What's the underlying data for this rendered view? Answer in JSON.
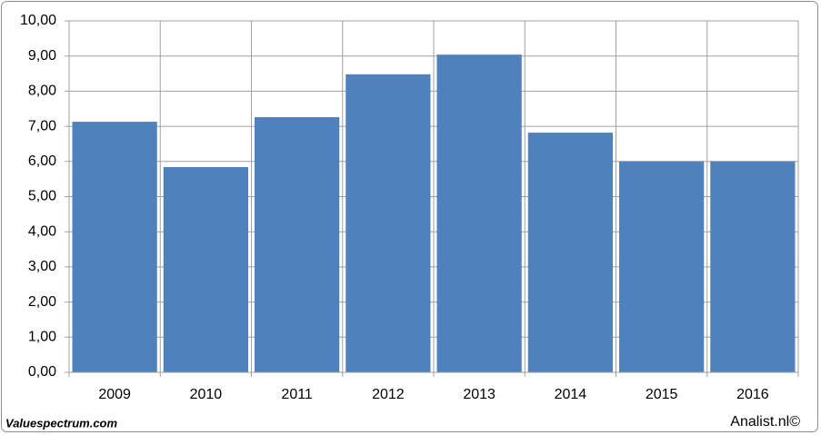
{
  "chart_data": {
    "type": "bar",
    "categories": [
      "2009",
      "2010",
      "2011",
      "2012",
      "2013",
      "2014",
      "2015",
      "2016"
    ],
    "values": [
      7.13,
      5.84,
      7.26,
      8.48,
      9.04,
      6.82,
      6.0,
      6.0
    ],
    "color": "#4f81bd",
    "ylim": [
      0,
      10
    ],
    "yticks": [
      {
        "value": 0,
        "label": "0,00"
      },
      {
        "value": 1,
        "label": "1,00"
      },
      {
        "value": 2,
        "label": "2,00"
      },
      {
        "value": 3,
        "label": "3,00"
      },
      {
        "value": 4,
        "label": "4,00"
      },
      {
        "value": 5,
        "label": "5,00"
      },
      {
        "value": 6,
        "label": "6,00"
      },
      {
        "value": 7,
        "label": "7,00"
      },
      {
        "value": 8,
        "label": "8,00"
      },
      {
        "value": 9,
        "label": "9,00"
      },
      {
        "value": 10,
        "label": "10,00"
      }
    ],
    "grid": true,
    "annotations": [
      "Valuespectrum.com",
      "Analist.nl©"
    ]
  }
}
